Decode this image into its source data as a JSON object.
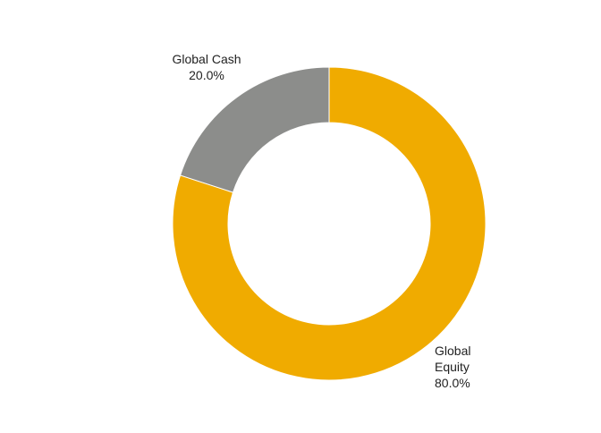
{
  "chart_data": {
    "type": "donut",
    "categories": [
      "Global Equity",
      "Global Cash"
    ],
    "values": [
      80,
      20
    ],
    "value_labels": [
      "80.0%",
      "20.0%"
    ],
    "colors": [
      "#f0ab00",
      "#8c8d8b"
    ]
  }
}
